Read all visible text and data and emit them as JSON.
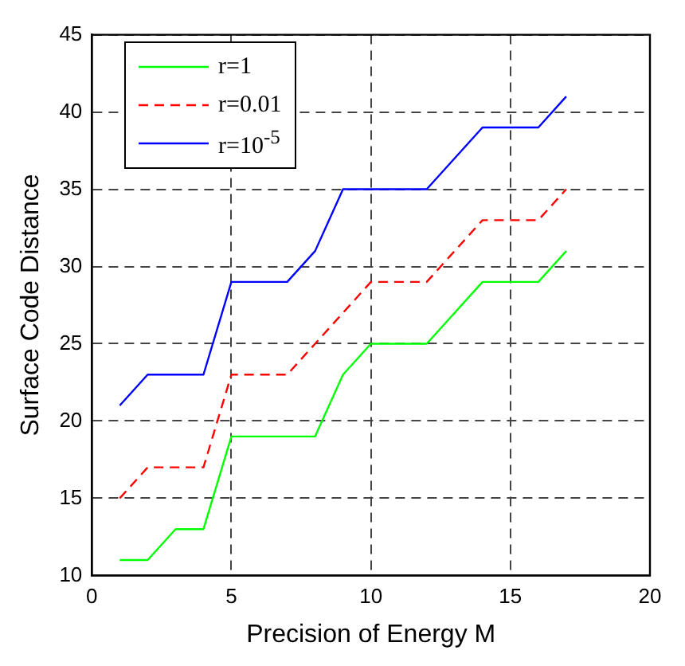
{
  "chart_data": {
    "type": "line",
    "xlabel": "Precision of Energy M",
    "ylabel": "Surface Code Distance",
    "series": [
      {
        "name": "r=1",
        "color": "#00ff00",
        "line_style": "solid",
        "x": [
          1,
          2,
          3,
          4,
          5,
          8,
          9,
          10,
          12,
          14,
          16,
          17
        ],
        "values": [
          11,
          11,
          13,
          13,
          19,
          19,
          23,
          25,
          25,
          29,
          29,
          31
        ]
      },
      {
        "name": "r=0.01",
        "color": "#ff0000",
        "line_style": "dashed",
        "x": [
          1,
          2,
          4,
          5,
          7,
          8,
          10,
          12,
          14,
          16,
          17
        ],
        "values": [
          15,
          17,
          17,
          23,
          23,
          25,
          29,
          29,
          33,
          33,
          35
        ]
      },
      {
        "name": "r=10$^{-5}$",
        "color": "#0000ff",
        "line_style": "solid",
        "x": [
          1,
          2,
          4,
          5,
          7,
          8,
          9,
          12,
          14,
          16,
          17
        ],
        "values": [
          21,
          23,
          23,
          29,
          29,
          31,
          35,
          35,
          39,
          39,
          41
        ]
      }
    ],
    "xlim": [
      0,
      20
    ],
    "xticks": [
      0,
      5,
      10,
      15,
      20
    ],
    "ylim": [
      10,
      45
    ],
    "yticks": [
      10,
      15,
      20,
      25,
      30,
      35,
      40,
      45
    ],
    "grid": true,
    "legend": "top left",
    "marker": "none"
  }
}
